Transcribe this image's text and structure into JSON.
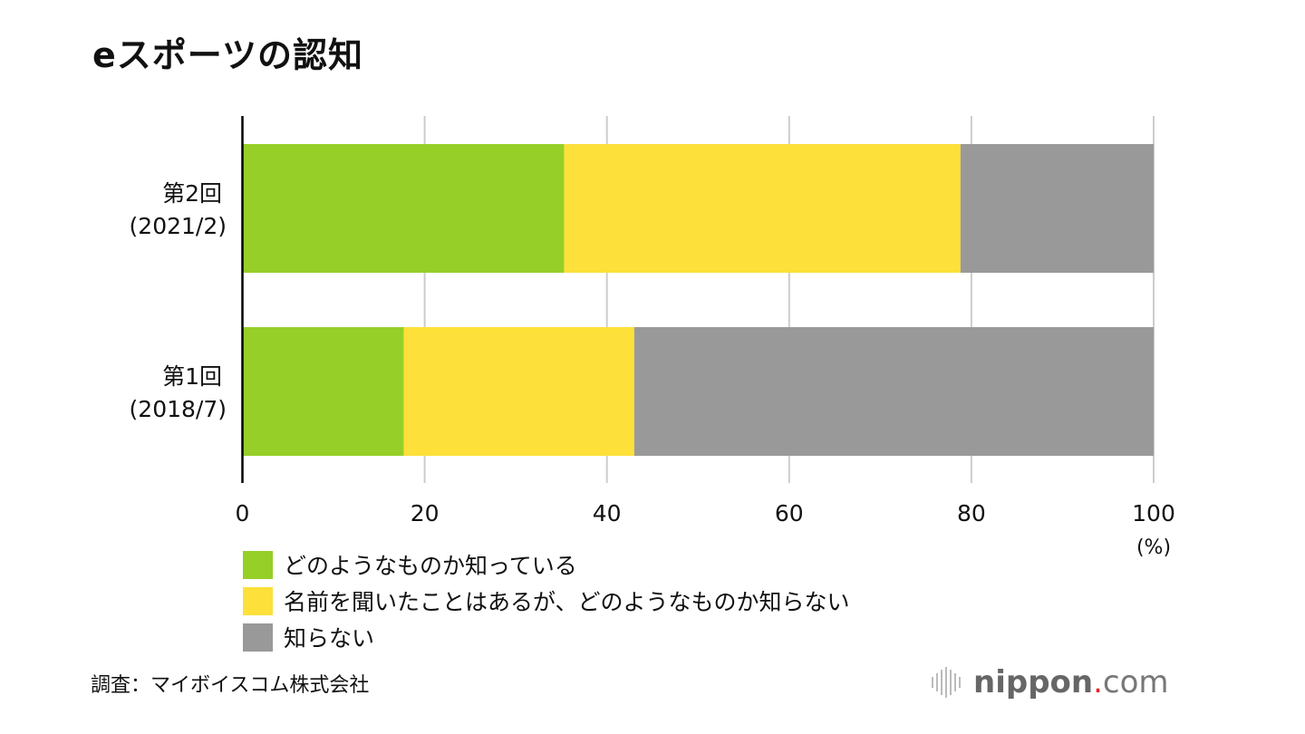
{
  "chart_data": {
    "type": "bar",
    "orientation": "horizontal",
    "stacked": true,
    "title": "eスポーツの認知",
    "categories": [
      {
        "line1": "第2回",
        "line2": "(2021/2)"
      },
      {
        "line1": "第1回",
        "line2": "(2018/7)"
      }
    ],
    "series": [
      {
        "name": "どのようなものか知っている",
        "color": "#96cf28",
        "values": [
          35.3,
          17.7
        ]
      },
      {
        "name": "名前を聞いたことはあるが、どのようなものか知らない",
        "color": "#fde039",
        "values": [
          43.5,
          25.3
        ]
      },
      {
        "name": "知らない",
        "color": "#999999",
        "values": [
          21.2,
          57.0
        ]
      }
    ],
    "xlim": [
      0,
      100
    ],
    "xticks": [
      0,
      20,
      40,
      60,
      80,
      100
    ],
    "xunit": "(%)",
    "grid": true,
    "legend_position": "bottom-left"
  },
  "source": "調査：マイボイスコム株式会社",
  "logo": {
    "name": "nippon",
    "dot": ".",
    "tld": "com"
  }
}
